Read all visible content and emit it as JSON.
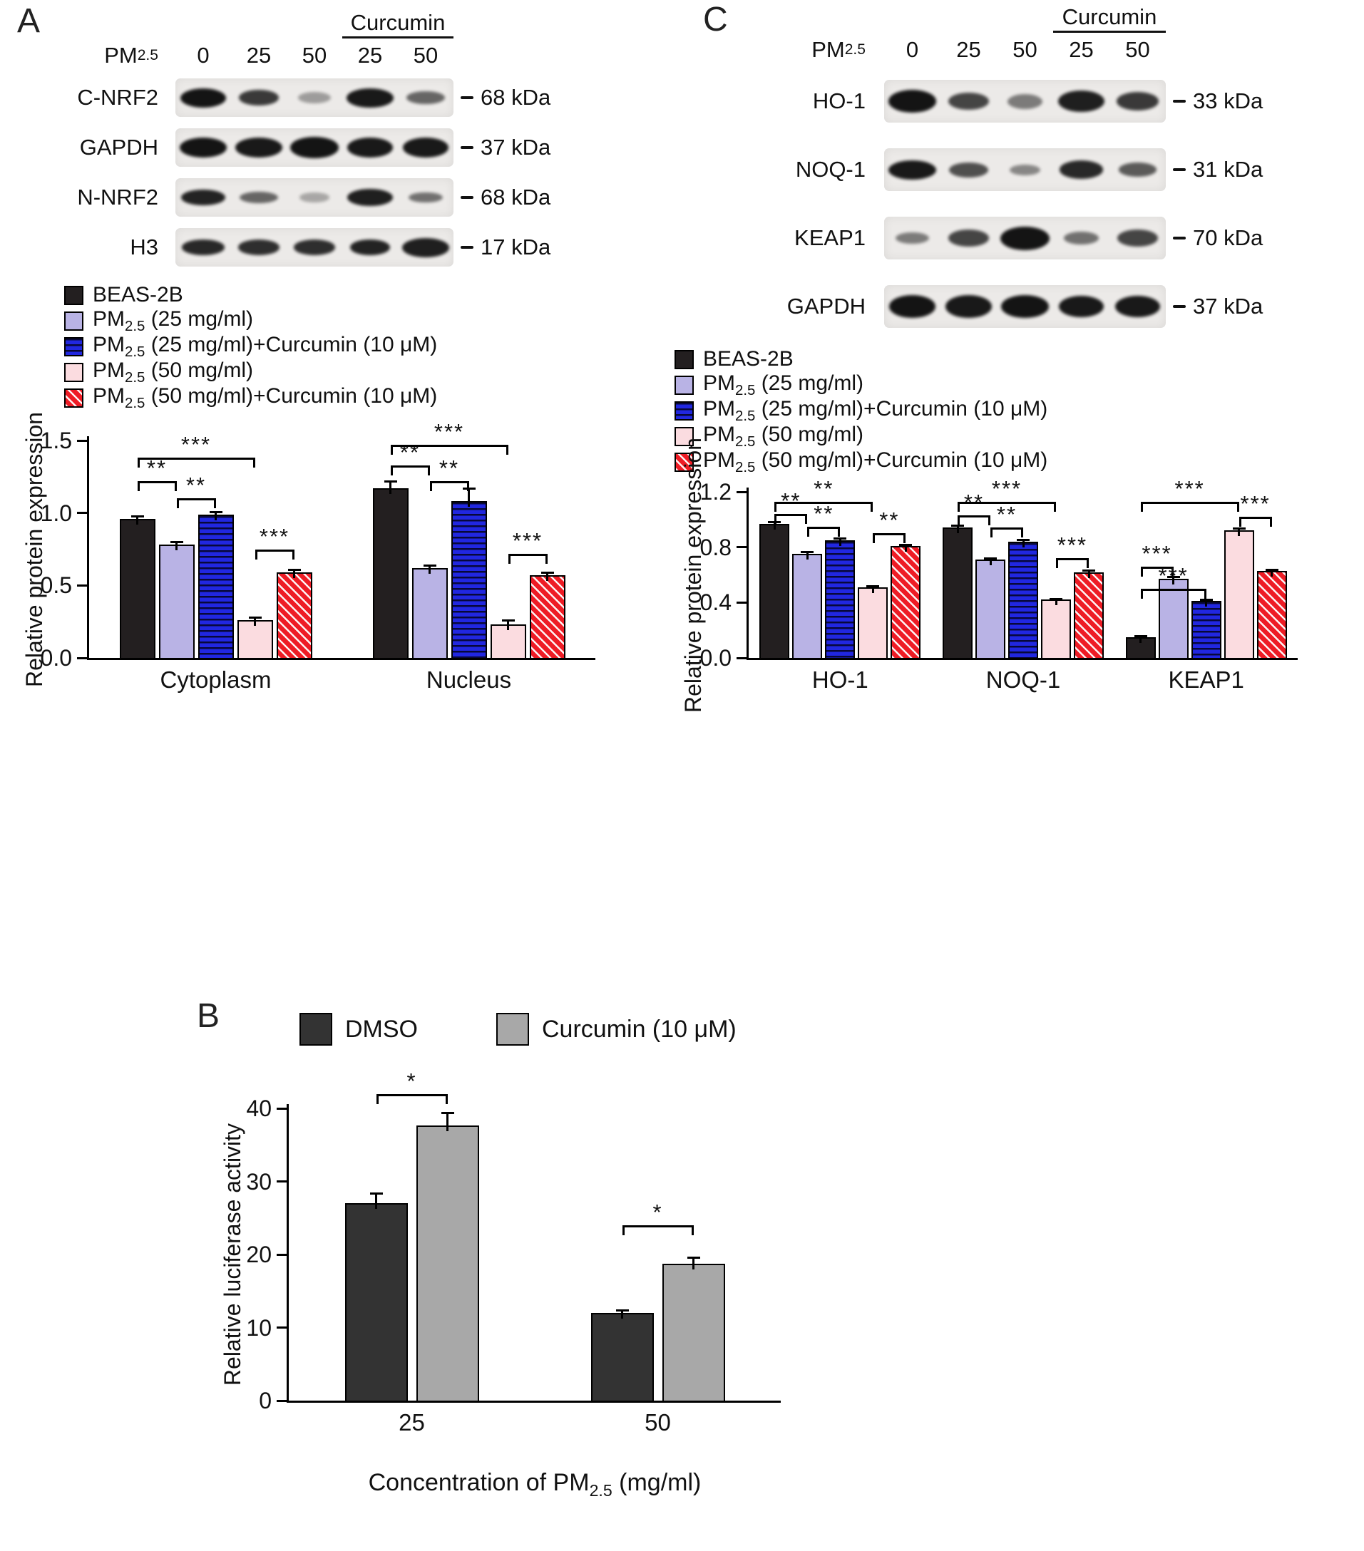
{
  "styles": {
    "black": "#231f20",
    "lavender": "#b9b3e5",
    "blue": "#2127e0",
    "pink": "#fbdce0",
    "red": "#ee1c25",
    "dmso": "#333333",
    "curcumin": "#a8a8a8"
  },
  "legend_items": [
    {
      "pre": "BEAS-2B",
      "sub": "",
      "post": "",
      "style": "black"
    },
    {
      "pre": "PM",
      "sub": "2.5",
      "post": " (25 mg/ml)",
      "style": "lavender"
    },
    {
      "pre": "PM",
      "sub": "2.5",
      "post": " (25 mg/ml)+Curcumin (10 μM)",
      "style": "blue"
    },
    {
      "pre": "PM",
      "sub": "2.5",
      "post": " (50 mg/ml)",
      "style": "pink"
    },
    {
      "pre": "PM",
      "sub": "2.5",
      "post": " (50 mg/ml)+Curcumin (10 μM)",
      "style": "red"
    }
  ],
  "panelA": {
    "label": "A",
    "blot": {
      "curcumin": "Curcumin",
      "pm_pre": "PM",
      "pm_sub": "2.5",
      "doses": [
        "0",
        "25",
        "50",
        "25",
        "50"
      ],
      "rows": [
        {
          "protein": "C-NRF2",
          "kda": "68 kDa",
          "bands": [
            [
              0.82,
              0.97,
              1
            ],
            [
              0.72,
              0.8,
              0.85
            ],
            [
              0.6,
              0.35,
              0.6
            ],
            [
              0.85,
              0.95,
              1
            ],
            [
              0.7,
              0.6,
              0.7
            ]
          ]
        },
        {
          "protein": "GAPDH",
          "kda": "37 kDa",
          "bands": [
            [
              0.85,
              0.97,
              1.05
            ],
            [
              0.85,
              0.95,
              1.05
            ],
            [
              0.88,
              0.97,
              1.1
            ],
            [
              0.82,
              0.95,
              1.05
            ],
            [
              0.82,
              0.95,
              1.05
            ]
          ]
        },
        {
          "protein": "N-NRF2",
          "kda": "68 kDa",
          "bands": [
            [
              0.8,
              0.9,
              0.85
            ],
            [
              0.68,
              0.6,
              0.6
            ],
            [
              0.55,
              0.3,
              0.5
            ],
            [
              0.82,
              0.92,
              0.9
            ],
            [
              0.62,
              0.55,
              0.55
            ]
          ]
        },
        {
          "protein": "H3",
          "kda": "17 kDa",
          "bands": [
            [
              0.78,
              0.88,
              0.8
            ],
            [
              0.75,
              0.85,
              0.8
            ],
            [
              0.75,
              0.85,
              0.8
            ],
            [
              0.72,
              0.9,
              0.85
            ],
            [
              0.85,
              0.92,
              1
            ]
          ]
        }
      ]
    }
  },
  "panelC": {
    "label": "C",
    "blot": {
      "curcumin": "Curcumin",
      "pm_pre": "PM",
      "pm_sub": "2.5",
      "doses": [
        "0",
        "25",
        "50",
        "25",
        "50"
      ],
      "rows": [
        {
          "protein": "HO-1",
          "kda": "33 kDa",
          "bands": [
            [
              0.85,
              0.97,
              1.05
            ],
            [
              0.72,
              0.75,
              0.8
            ],
            [
              0.62,
              0.5,
              0.7
            ],
            [
              0.82,
              0.92,
              1
            ],
            [
              0.75,
              0.8,
              0.85
            ]
          ]
        },
        {
          "protein": "NOQ-1",
          "kda": "31 kDa",
          "bands": [
            [
              0.85,
              0.95,
              0.9
            ],
            [
              0.7,
              0.7,
              0.7
            ],
            [
              0.55,
              0.45,
              0.5
            ],
            [
              0.78,
              0.88,
              0.85
            ],
            [
              0.68,
              0.65,
              0.65
            ]
          ]
        },
        {
          "protein": "KEAP1",
          "kda": "70 kDa",
          "bands": [
            [
              0.6,
              0.5,
              0.55
            ],
            [
              0.72,
              0.75,
              0.8
            ],
            [
              0.88,
              0.97,
              1.1
            ],
            [
              0.62,
              0.55,
              0.6
            ],
            [
              0.72,
              0.75,
              0.8
            ]
          ]
        },
        {
          "protein": "GAPDH",
          "kda": "37 kDa",
          "bands": [
            [
              0.82,
              0.97,
              1.05
            ],
            [
              0.82,
              0.95,
              1.05
            ],
            [
              0.85,
              0.97,
              1.05
            ],
            [
              0.8,
              0.95,
              1
            ],
            [
              0.8,
              0.95,
              1
            ]
          ]
        }
      ]
    }
  },
  "panelB": {
    "label": "B",
    "legend": [
      {
        "pre": "DMSO",
        "sub": "",
        "post": "",
        "style": "dmso"
      },
      {
        "pre": "Curcumin (10 μM)",
        "sub": "",
        "post": "",
        "style": "curcumin"
      }
    ]
  },
  "chart_data": [
    {
      "panel": "A",
      "type": "bar",
      "ylabel": "Relative protein expression",
      "yticks": [
        "0.0",
        "0.5",
        "1.0",
        "1.5"
      ],
      "ymax": 1.5,
      "grid": false,
      "legend_position": "above",
      "categories": [
        "Cytoplasm",
        "Nucleus"
      ],
      "series": [
        {
          "name": "BEAS-2B",
          "style": "black",
          "values": [
            0.96,
            1.17
          ],
          "errors": [
            0.02,
            0.05
          ]
        },
        {
          "name": "PM2.5 (25 mg/ml)",
          "style": "lavender",
          "values": [
            0.78,
            0.62
          ],
          "errors": [
            0.02,
            0.02
          ]
        },
        {
          "name": "PM2.5 (25 mg/ml)+Curcumin (10 μM)",
          "style": "blue",
          "values": [
            0.99,
            1.08
          ],
          "errors": [
            0.02,
            0.09
          ]
        },
        {
          "name": "PM2.5 (50 mg/ml)",
          "style": "pink",
          "values": [
            0.26,
            0.23
          ],
          "errors": [
            0.02,
            0.03
          ]
        },
        {
          "name": "PM2.5 (50 mg/ml)+Curcumin (10 μM)",
          "style": "red",
          "values": [
            0.59,
            0.57
          ],
          "errors": [
            0.02,
            0.02
          ]
        }
      ],
      "brackets": [
        {
          "group": 0,
          "from": 0,
          "to": 1,
          "y": 1.22,
          "label": "**"
        },
        {
          "group": 0,
          "from": 1,
          "to": 2,
          "y": 1.1,
          "label": "**"
        },
        {
          "group": 0,
          "from": 0,
          "to": 3,
          "y": 1.38,
          "label": "***"
        },
        {
          "group": 0,
          "from": 3,
          "to": 4,
          "y": 0.75,
          "label": "***"
        },
        {
          "group": 1,
          "from": 0,
          "to": 1,
          "y": 1.33,
          "label": "**"
        },
        {
          "group": 1,
          "from": 1,
          "to": 2,
          "y": 1.22,
          "label": "**"
        },
        {
          "group": 1,
          "from": 0,
          "to": 3,
          "y": 1.47,
          "label": "***"
        },
        {
          "group": 1,
          "from": 3,
          "to": 4,
          "y": 0.72,
          "label": "***"
        }
      ]
    },
    {
      "panel": "B",
      "type": "bar",
      "ylabel": "Relative luciferase activity",
      "xlabel_pre": "Concentration of PM",
      "xlabel_sub": "2.5",
      "xlabel_post": " (mg/ml)",
      "yticks": [
        "0",
        "10",
        "20",
        "30",
        "40"
      ],
      "ymax": 40,
      "grid": false,
      "legend_position": "above",
      "categories": [
        "25",
        "50"
      ],
      "series": [
        {
          "name": "DMSO",
          "style": "dmso",
          "values": [
            27,
            12
          ],
          "errors": [
            1.4,
            0.4
          ]
        },
        {
          "name": "Curcumin (10 μM)",
          "style": "curcumin",
          "values": [
            37.7,
            18.7
          ],
          "errors": [
            1.7,
            0.9
          ]
        }
      ],
      "brackets": [
        {
          "group": 0,
          "from": 0,
          "to": 1,
          "y": 42,
          "label": "*"
        },
        {
          "group": 1,
          "from": 0,
          "to": 1,
          "y": 24,
          "label": "*"
        }
      ]
    },
    {
      "panel": "C",
      "type": "bar",
      "ylabel": "Relative protein expression",
      "yticks": [
        "0.0",
        "0.4",
        "0.8",
        "1.2"
      ],
      "ymax": 1.2,
      "grid": false,
      "legend_position": "above",
      "categories": [
        "HO-1",
        "NOQ-1",
        "KEAP1"
      ],
      "series": [
        {
          "name": "BEAS-2B",
          "style": "black",
          "values": [
            0.97,
            0.94,
            0.15
          ],
          "errors": [
            0.015,
            0.02,
            0.01
          ]
        },
        {
          "name": "PM2.5 (25 mg/ml)",
          "style": "lavender",
          "values": [
            0.75,
            0.71,
            0.57
          ],
          "errors": [
            0.015,
            0.01,
            0.015
          ]
        },
        {
          "name": "PM2.5 (25 mg/ml)+Curcumin (10 μM)",
          "style": "blue",
          "values": [
            0.85,
            0.84,
            0.41
          ],
          "errors": [
            0.015,
            0.015,
            0.01
          ]
        },
        {
          "name": "PM2.5 (50 mg/ml)",
          "style": "pink",
          "values": [
            0.51,
            0.42,
            0.92
          ],
          "errors": [
            0.01,
            0.01,
            0.015
          ]
        },
        {
          "name": "PM2.5 (50 mg/ml)+Curcumin (10 μM)",
          "style": "red",
          "values": [
            0.81,
            0.62,
            0.63
          ],
          "errors": [
            0.01,
            0.015,
            0.01
          ]
        }
      ],
      "brackets": [
        {
          "group": 0,
          "from": 0,
          "to": 1,
          "y": 1.04,
          "label": "**"
        },
        {
          "group": 0,
          "from": 1,
          "to": 2,
          "y": 0.95,
          "label": "**"
        },
        {
          "group": 0,
          "from": 0,
          "to": 3,
          "y": 1.13,
          "label": "**"
        },
        {
          "group": 0,
          "from": 3,
          "to": 4,
          "y": 0.9,
          "label": "**"
        },
        {
          "group": 1,
          "from": 0,
          "to": 1,
          "y": 1.03,
          "label": "**"
        },
        {
          "group": 1,
          "from": 1,
          "to": 2,
          "y": 0.94,
          "label": "**"
        },
        {
          "group": 1,
          "from": 0,
          "to": 3,
          "y": 1.13,
          "label": "***"
        },
        {
          "group": 1,
          "from": 3,
          "to": 4,
          "y": 0.72,
          "label": "***"
        },
        {
          "group": 2,
          "from": 0,
          "to": 1,
          "y": 0.66,
          "label": "***"
        },
        {
          "group": 2,
          "from": 0,
          "to": 2,
          "y": 0.5,
          "label": "***"
        },
        {
          "group": 2,
          "from": 0,
          "to": 3,
          "y": 1.13,
          "label": "***"
        },
        {
          "group": 2,
          "from": 3,
          "to": 4,
          "y": 1.02,
          "label": "***"
        }
      ]
    }
  ]
}
